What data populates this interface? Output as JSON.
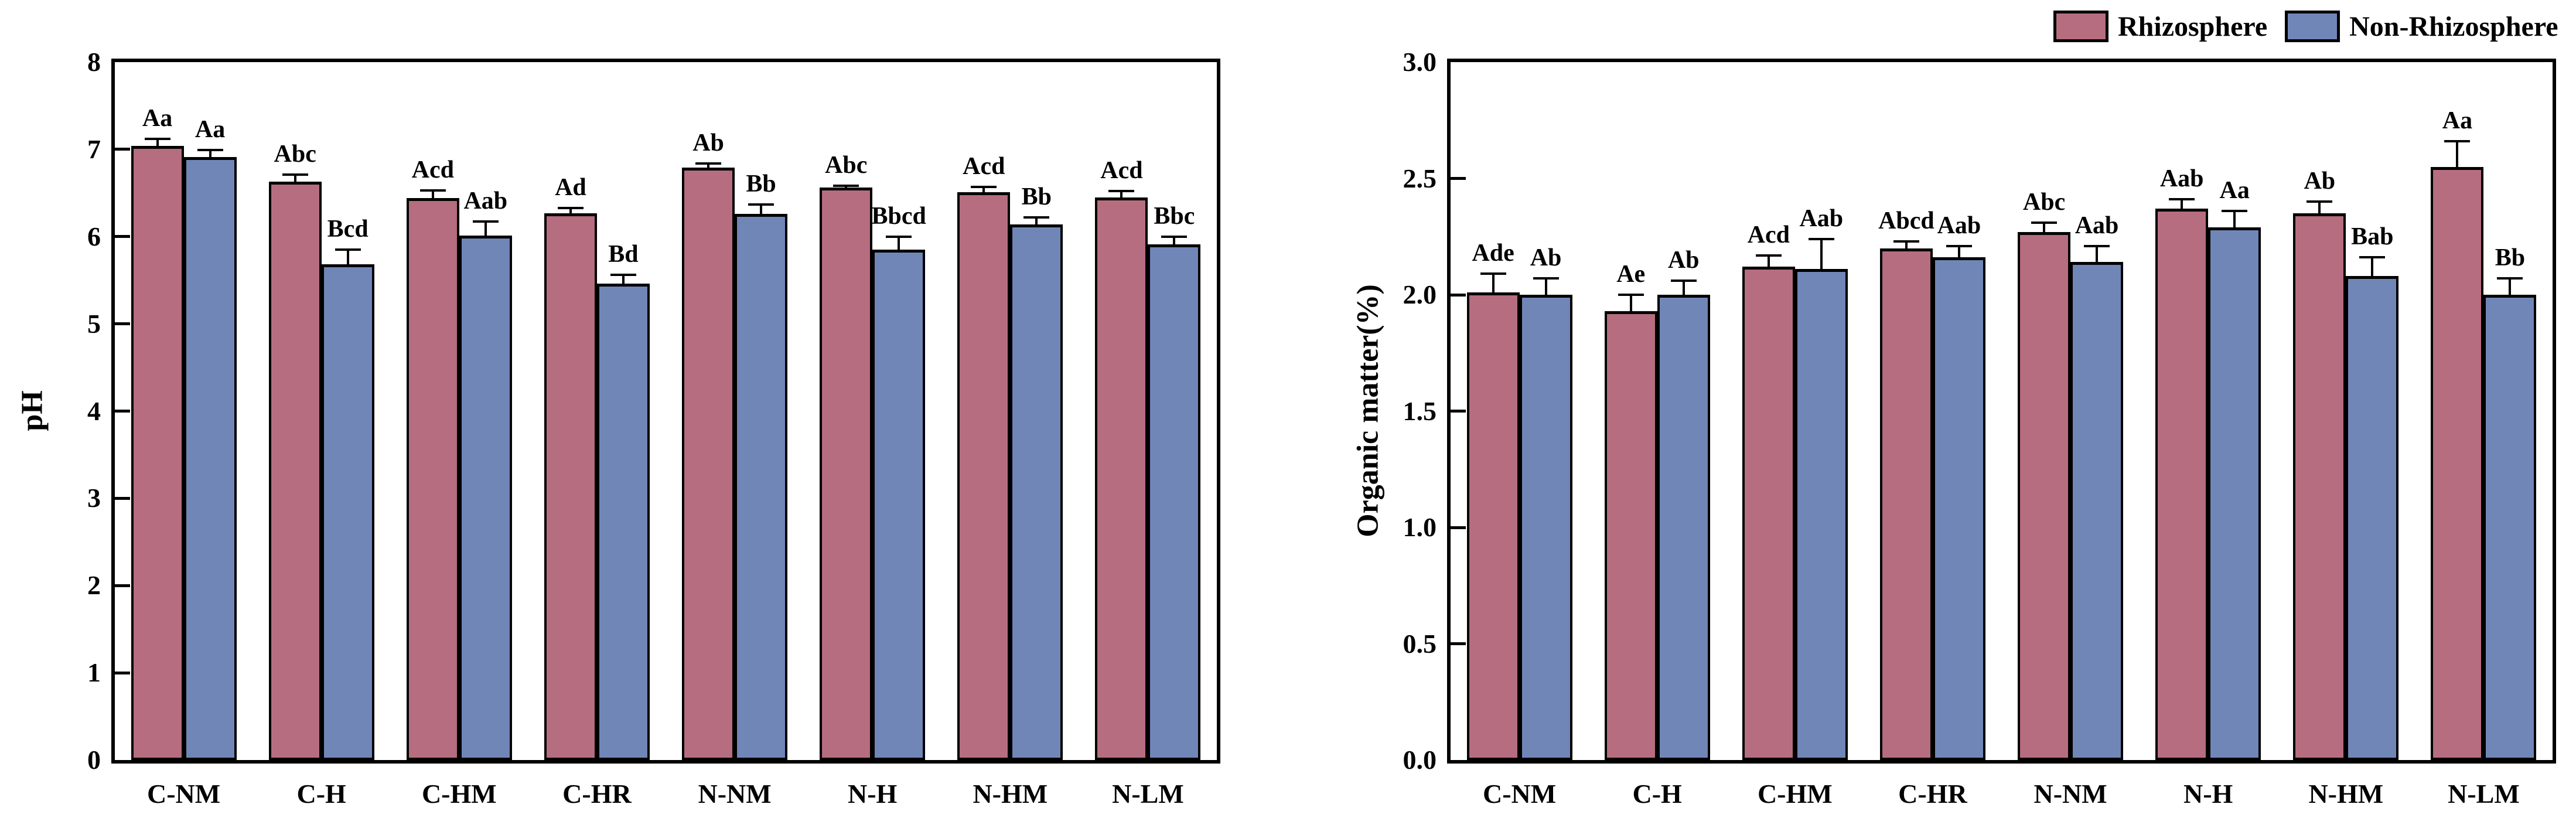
{
  "page": {
    "background": "#ffffff"
  },
  "legend": {
    "items": [
      {
        "label": "Rhizosphere",
        "color": "#b66d80"
      },
      {
        "label": "Non-Rhizosphere",
        "color": "#7086b7"
      }
    ]
  },
  "chart_data": [
    {
      "type": "bar",
      "title": "",
      "xlabel": "",
      "ylabel": "pH",
      "categories": [
        "C-NM",
        "C-H",
        "C-HM",
        "C-HR",
        "N-NM",
        "N-H",
        "N-HM",
        "N-LM"
      ],
      "ylim": [
        0,
        8
      ],
      "yticks": [
        0,
        1,
        2,
        3,
        4,
        5,
        6,
        7,
        8
      ],
      "ytick_labels": [
        "0",
        "1",
        "2",
        "3",
        "4",
        "5",
        "6",
        "7",
        "8"
      ],
      "grid": false,
      "legend_position": "top-right-of-figure",
      "series": [
        {
          "name": "Rhizosphere",
          "color": "#b66d80",
          "values": [
            7.04,
            6.63,
            6.44,
            6.27,
            6.79,
            6.56,
            6.51,
            6.45
          ],
          "errors": [
            0.08,
            0.08,
            0.09,
            0.06,
            0.05,
            0.02,
            0.06,
            0.07
          ],
          "sig_labels": [
            "Aa",
            "Abc",
            "Acd",
            "Ad",
            "Ab",
            "Abc",
            "Acd",
            "Acd"
          ]
        },
        {
          "name": "Non-Rhizosphere",
          "color": "#7086b7",
          "values": [
            6.91,
            5.68,
            6.01,
            5.46,
            6.26,
            5.85,
            6.14,
            5.91
          ],
          "errors": [
            0.08,
            0.17,
            0.16,
            0.1,
            0.11,
            0.15,
            0.08,
            0.09
          ],
          "sig_labels": [
            "Aa",
            "Bcd",
            "Aab",
            "Bd",
            "Bb",
            "Bbcd",
            "Bb",
            "Bbc"
          ]
        }
      ]
    },
    {
      "type": "bar",
      "title": "",
      "xlabel": "",
      "ylabel": "Organic matter(%)",
      "categories": [
        "C-NM",
        "C-H",
        "C-HM",
        "C-HR",
        "N-NM",
        "N-H",
        "N-HM",
        "N-LM"
      ],
      "ylim": [
        0,
        3
      ],
      "yticks": [
        0,
        0.5,
        1,
        1.5,
        2,
        2.5,
        3
      ],
      "ytick_labels": [
        "0.0",
        "0.5",
        "1.0",
        "1.5",
        "2.0",
        "2.5",
        "3.0"
      ],
      "grid": false,
      "legend_position": "top-right-of-figure",
      "series": [
        {
          "name": "Rhizosphere",
          "color": "#b66d80",
          "values": [
            2.01,
            1.93,
            2.12,
            2.2,
            2.27,
            2.37,
            2.35,
            2.55
          ],
          "errors": [
            0.08,
            0.07,
            0.05,
            0.03,
            0.04,
            0.04,
            0.05,
            0.11
          ],
          "sig_labels": [
            "Ade",
            "Ae",
            "Acd",
            "Abcd",
            "Abc",
            "Aab",
            "Ab",
            "Aa"
          ]
        },
        {
          "name": "Non-Rhizosphere",
          "color": "#7086b7",
          "values": [
            2.0,
            2.0,
            2.11,
            2.16,
            2.14,
            2.29,
            2.08,
            2.0
          ],
          "errors": [
            0.07,
            0.06,
            0.13,
            0.05,
            0.07,
            0.07,
            0.08,
            0.07
          ],
          "sig_labels": [
            "Ab",
            "Ab",
            "Aab",
            "Aab",
            "Aab",
            "Aa",
            "Bab",
            "Bb"
          ]
        }
      ]
    }
  ]
}
